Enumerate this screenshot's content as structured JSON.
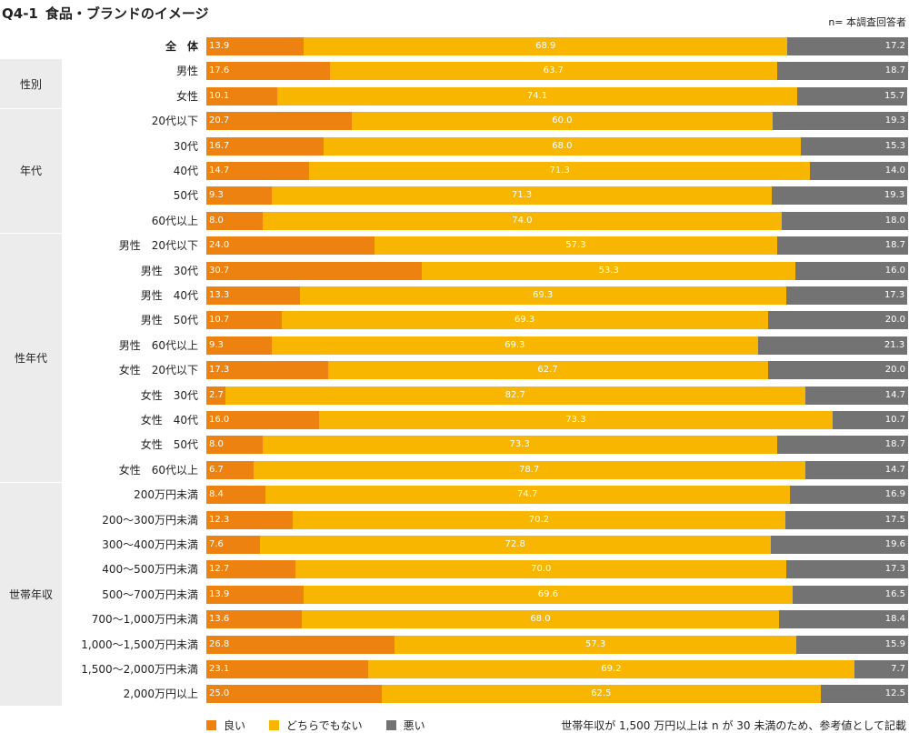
{
  "title": {
    "number": "Q4-1",
    "text": "食品・ブランドのイメージ"
  },
  "n_note": "n= 本調査回答者",
  "colors": {
    "good": "#ee8211",
    "neutral": "#f8b600",
    "bad": "#737373"
  },
  "chart_data": {
    "type": "stacked-bar",
    "orientation": "horizontal",
    "unit": "%",
    "series_names": [
      "良い",
      "どちらでもない",
      "悪い"
    ],
    "groups": [
      {
        "name": "",
        "rows": [
          {
            "label": "全　体",
            "values": [
              13.9,
              68.9,
              17.2
            ],
            "bold": true
          }
        ]
      },
      {
        "name": "性別",
        "rows": [
          {
            "label": "男性",
            "values": [
              17.6,
              63.7,
              18.7
            ]
          },
          {
            "label": "女性",
            "values": [
              10.1,
              74.1,
              15.7
            ]
          }
        ]
      },
      {
        "name": "年代",
        "rows": [
          {
            "label": "20代以下",
            "values": [
              20.7,
              60.0,
              19.3
            ]
          },
          {
            "label": "30代",
            "values": [
              16.7,
              68.0,
              15.3
            ]
          },
          {
            "label": "40代",
            "values": [
              14.7,
              71.3,
              14.0
            ]
          },
          {
            "label": "50代",
            "values": [
              9.3,
              71.3,
              19.3
            ]
          },
          {
            "label": "60代以上",
            "values": [
              8.0,
              74.0,
              18.0
            ]
          }
        ]
      },
      {
        "name": "性年代",
        "rows": [
          {
            "label": "男性　20代以下",
            "values": [
              24.0,
              57.3,
              18.7
            ]
          },
          {
            "label": "男性　30代",
            "values": [
              30.7,
              53.3,
              16.0
            ]
          },
          {
            "label": "男性　40代",
            "values": [
              13.3,
              69.3,
              17.3
            ]
          },
          {
            "label": "男性　50代",
            "values": [
              10.7,
              69.3,
              20.0
            ]
          },
          {
            "label": "男性　60代以上",
            "values": [
              9.3,
              69.3,
              21.3
            ]
          },
          {
            "label": "女性　20代以下",
            "values": [
              17.3,
              62.7,
              20.0
            ]
          },
          {
            "label": "女性　30代",
            "values": [
              2.7,
              82.7,
              14.7
            ]
          },
          {
            "label": "女性　40代",
            "values": [
              16.0,
              73.3,
              10.7
            ]
          },
          {
            "label": "女性　50代",
            "values": [
              8.0,
              73.3,
              18.7
            ]
          },
          {
            "label": "女性　60代以上",
            "values": [
              6.7,
              78.7,
              14.7
            ]
          }
        ]
      },
      {
        "name": "世帯年収",
        "rows": [
          {
            "label": "200万円未満",
            "values": [
              8.4,
              74.7,
              16.9
            ]
          },
          {
            "label": "200〜300万円未満",
            "values": [
              12.3,
              70.2,
              17.5
            ]
          },
          {
            "label": "300〜400万円未満",
            "values": [
              7.6,
              72.8,
              19.6
            ]
          },
          {
            "label": "400〜500万円未満",
            "values": [
              12.7,
              70.0,
              17.3
            ]
          },
          {
            "label": "500〜700万円未満",
            "values": [
              13.9,
              69.6,
              16.5
            ]
          },
          {
            "label": "700〜1,000万円未満",
            "values": [
              13.6,
              68.0,
              18.4
            ]
          },
          {
            "label": "1,000〜1,500万円未満",
            "values": [
              26.8,
              57.3,
              15.9
            ]
          },
          {
            "label": "1,500〜2,000万円未満",
            "values": [
              23.1,
              69.2,
              7.7
            ]
          },
          {
            "label": "2,000万円以上",
            "values": [
              25.0,
              62.5,
              12.5
            ]
          }
        ]
      }
    ]
  },
  "legend": [
    {
      "label": "良い",
      "color": "#ee8211"
    },
    {
      "label": "どちらでもない",
      "color": "#f8b600"
    },
    {
      "label": "悪い",
      "color": "#737373"
    }
  ],
  "footnote": "世帯年収が 1,500 万円以上は n が 30 未満のため、参考値として記載"
}
